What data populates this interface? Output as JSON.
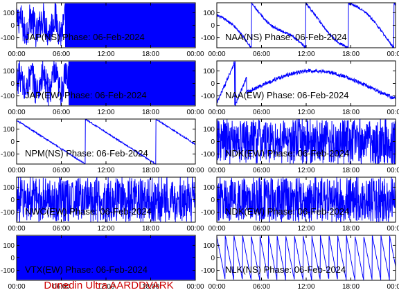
{
  "footer": "Dunedin Ultra AARDDVARK",
  "colors": {
    "trace": "#0000ff",
    "footer": "#cc0000"
  },
  "chart_data": [
    {
      "type": "line",
      "title": "JAP(NS) Phase: 06-Feb-2024",
      "x_ticks": [
        "00:00",
        "06:00",
        "12:00",
        "18:00",
        "00:00"
      ],
      "y_ticks": [
        100,
        0,
        -100
      ],
      "ylim": [
        -180,
        180
      ],
      "xlim_hours": [
        0,
        24
      ],
      "pattern": "dense",
      "dense_start": 6.5,
      "grid": false
    },
    {
      "type": "line",
      "title": "NAA(NS) Phase: 06-Feb-2024",
      "x_ticks": [
        "00:00",
        "06:00",
        "12:00",
        "18:00",
        "00:00"
      ],
      "y_ticks": [
        100,
        0,
        -100
      ],
      "ylim": [
        -180,
        180
      ],
      "xlim_hours": [
        0,
        24
      ],
      "pattern": "drift",
      "grid": false
    },
    {
      "type": "line",
      "title": "JAP(EW) Phase: 06-Feb-2024",
      "x_ticks": [
        "00:00",
        "06:00",
        "12:00",
        "18:00",
        "00:00"
      ],
      "y_ticks": [
        100,
        0,
        -100
      ],
      "ylim": [
        -180,
        180
      ],
      "xlim_hours": [
        0,
        24
      ],
      "pattern": "dense",
      "dense_start": 7.0,
      "grid": false
    },
    {
      "type": "line",
      "title": "NAA(EW) Phase: 06-Feb-2024",
      "x_ticks": [
        "00:00",
        "06:00",
        "12:00",
        "18:00",
        "00:00"
      ],
      "y_ticks": [
        100,
        0,
        -100
      ],
      "ylim": [
        -180,
        180
      ],
      "xlim_hours": [
        0,
        24
      ],
      "pattern": "valley",
      "grid": false
    },
    {
      "type": "line",
      "title": "NPM(NS) Phase: 06-Feb-2024",
      "x_ticks": [
        "00:00",
        "06:00",
        "12:00",
        "18:00",
        "00:00"
      ],
      "y_ticks": [
        100,
        0,
        -100
      ],
      "ylim": [
        -180,
        180
      ],
      "xlim_hours": [
        0,
        24
      ],
      "pattern": "sawtooth_slow",
      "grid": false
    },
    {
      "type": "line",
      "title": "NDK(EW) Phase: 06-Feb-2024",
      "x_ticks": [
        "00:00",
        "06:00",
        "12:00",
        "18:00",
        "00:00"
      ],
      "y_ticks": [
        100,
        0,
        -100
      ],
      "ylim": [
        -180,
        180
      ],
      "xlim_hours": [
        0,
        24
      ],
      "pattern": "noise",
      "grid": false
    },
    {
      "type": "line",
      "title": "NWC(EW) Phase: 06-Feb-2024",
      "x_ticks": [
        "00:00",
        "06:00",
        "12:00",
        "18:00",
        "00:00"
      ],
      "y_ticks": [
        100,
        0,
        -100
      ],
      "ylim": [
        -180,
        180
      ],
      "xlim_hours": [
        0,
        24
      ],
      "pattern": "noise",
      "grid": false
    },
    {
      "type": "line",
      "title": "NDK(EW) Phase: 06-Feb-2024",
      "x_ticks": [
        "00:00",
        "06:00",
        "12:00",
        "18:00",
        "00:00"
      ],
      "y_ticks": [
        100,
        0,
        -100
      ],
      "ylim": [
        -180,
        180
      ],
      "xlim_hours": [
        0,
        24
      ],
      "pattern": "noise",
      "grid": false
    },
    {
      "type": "line",
      "title": "VTX(EW) Phase: 06-Feb-2024",
      "x_ticks": [
        "00:00",
        "06:00",
        "12:00",
        "18:00",
        "00:00"
      ],
      "y_ticks": [
        100,
        0,
        -100
      ],
      "ylim": [
        -180,
        180
      ],
      "xlim_hours": [
        0,
        24
      ],
      "pattern": "dense",
      "dense_start": 0,
      "grid": false
    },
    {
      "type": "line",
      "title": "NLK(NS) Phase: 06-Feb-2024",
      "x_ticks": [
        "00:00",
        "06:00",
        "12:00",
        "18:00",
        "00:00"
      ],
      "y_ticks": [
        100,
        0,
        -100
      ],
      "ylim": [
        -180,
        180
      ],
      "xlim_hours": [
        0,
        24
      ],
      "pattern": "sawtooth_fast",
      "grid": false
    }
  ]
}
